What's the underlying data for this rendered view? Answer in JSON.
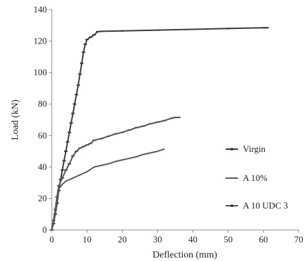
{
  "chart_data": {
    "type": "line",
    "title": "",
    "xlabel": "Deflection (mm)",
    "ylabel": "Load (kN)",
    "xlim": [
      0,
      70
    ],
    "ylim": [
      0,
      140
    ],
    "xticks": [
      "0",
      "10",
      "20",
      "30",
      "40",
      "50",
      "60",
      "70"
    ],
    "yticks": [
      "0",
      "20",
      "40",
      "60",
      "80",
      "100",
      "120",
      "140"
    ],
    "grid": false,
    "legend_position": "right",
    "series": [
      {
        "name": "Virgin",
        "color": "#3a3a3a",
        "marker": "dash",
        "points": [
          [
            0,
            0
          ],
          [
            0.5,
            4
          ],
          [
            1,
            10
          ],
          [
            1.5,
            17
          ],
          [
            2,
            25
          ],
          [
            2.5,
            32
          ],
          [
            3,
            38
          ],
          [
            3.5,
            44
          ],
          [
            4,
            50
          ],
          [
            4.5,
            56
          ],
          [
            5,
            62
          ],
          [
            5.5,
            68
          ],
          [
            6,
            74
          ],
          [
            6.5,
            80
          ],
          [
            7,
            86
          ],
          [
            7.5,
            92
          ],
          [
            8,
            99
          ],
          [
            8.5,
            106
          ],
          [
            9,
            113
          ],
          [
            9.5,
            118
          ],
          [
            10,
            121
          ],
          [
            11,
            122.5
          ],
          [
            12,
            124
          ],
          [
            13,
            126
          ],
          [
            14,
            126.2
          ],
          [
            20,
            126.5
          ],
          [
            30,
            127
          ],
          [
            40,
            127.5
          ],
          [
            50,
            128
          ],
          [
            60,
            128.5
          ],
          [
            61,
            128.5
          ]
        ]
      },
      {
        "name": "A 10%",
        "color": "#5a5a5a",
        "marker": "none",
        "points": [
          [
            0,
            0
          ],
          [
            0.5,
            5
          ],
          [
            1,
            12
          ],
          [
            1.5,
            20
          ],
          [
            2,
            26
          ],
          [
            3,
            29
          ],
          [
            4,
            31
          ],
          [
            5,
            32
          ],
          [
            6,
            33
          ],
          [
            7,
            34
          ],
          [
            8,
            35
          ],
          [
            9,
            36
          ],
          [
            10,
            37
          ],
          [
            11,
            38.5
          ],
          [
            12,
            40
          ],
          [
            14,
            41
          ],
          [
            16,
            42
          ],
          [
            18,
            43.5
          ],
          [
            20,
            44.5
          ],
          [
            22,
            45.5
          ],
          [
            24,
            46.5
          ],
          [
            26,
            48
          ],
          [
            28,
            49
          ],
          [
            30,
            50
          ],
          [
            32,
            51.5
          ]
        ]
      },
      {
        "name": "A 10 UDC 3",
        "color": "#555555",
        "marker": "dash",
        "points": [
          [
            0,
            0
          ],
          [
            0.5,
            6
          ],
          [
            1,
            13
          ],
          [
            1.5,
            21
          ],
          [
            2,
            28
          ],
          [
            3,
            33
          ],
          [
            4,
            38
          ],
          [
            5,
            42
          ],
          [
            6,
            47
          ],
          [
            7,
            50
          ],
          [
            8,
            52
          ],
          [
            9,
            53
          ],
          [
            10,
            54
          ],
          [
            11,
            55
          ],
          [
            12,
            57
          ],
          [
            14,
            58
          ],
          [
            16,
            59.5
          ],
          [
            18,
            61
          ],
          [
            20,
            62
          ],
          [
            22,
            63.5
          ],
          [
            24,
            65
          ],
          [
            26,
            66
          ],
          [
            28,
            67.5
          ],
          [
            30,
            68.5
          ],
          [
            32,
            69.5
          ],
          [
            34,
            71
          ],
          [
            35,
            71.5
          ],
          [
            36,
            71.5
          ]
        ]
      }
    ]
  }
}
